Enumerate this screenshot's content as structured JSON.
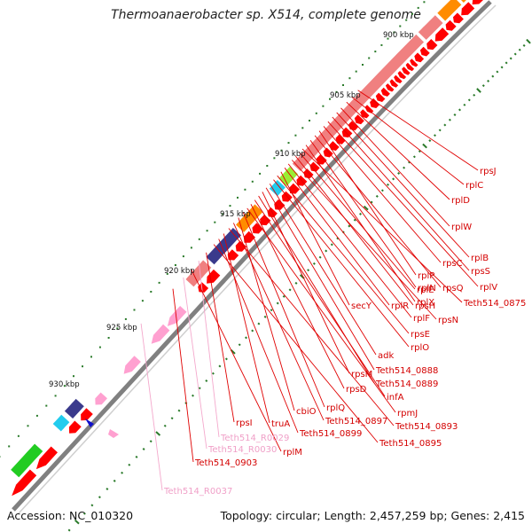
{
  "title": "Thermoanaerobacter sp. X514, complete genome",
  "footer": {
    "accession": "Accession: NC_010320",
    "summary": "Topology: circular; Length: 2,457,259 bp; Genes: 2,415"
  },
  "scale_labels": [
    "900 kbp",
    "905 kbp",
    "910 kbp",
    "915 kbp",
    "920 kbp",
    "925 kbp",
    "930 kbp"
  ],
  "gene_labels": [
    {
      "text": "rpsJ",
      "color": "#d40000"
    },
    {
      "text": "rplC",
      "color": "#d40000"
    },
    {
      "text": "rplD",
      "color": "#d40000"
    },
    {
      "text": "rplW",
      "color": "#d40000"
    },
    {
      "text": "rplB",
      "color": "#d40000"
    },
    {
      "text": "rpsS",
      "color": "#d40000"
    },
    {
      "text": "rplV",
      "color": "#d40000"
    },
    {
      "text": "rpsC",
      "color": "#d40000"
    },
    {
      "text": "rplP",
      "color": "#d40000"
    },
    {
      "text": "rpsQ",
      "color": "#d40000"
    },
    {
      "text": "rplN",
      "color": "#d40000"
    },
    {
      "text": "rplX",
      "color": "#d40000"
    },
    {
      "text": "Teth514_0875",
      "color": "#d40000"
    },
    {
      "text": "rplE",
      "color": "#d40000"
    },
    {
      "text": "rpsH",
      "color": "#d40000"
    },
    {
      "text": "rpsN",
      "color": "#d40000"
    },
    {
      "text": "rplF",
      "color": "#d40000"
    },
    {
      "text": "rplR",
      "color": "#d40000"
    },
    {
      "text": "secY",
      "color": "#d40000"
    },
    {
      "text": "rpsE",
      "color": "#d40000"
    },
    {
      "text": "rplO",
      "color": "#d40000"
    },
    {
      "text": "adk",
      "color": "#d40000"
    },
    {
      "text": "Teth514_0888",
      "color": "#d40000"
    },
    {
      "text": "rpsM",
      "color": "#d40000"
    },
    {
      "text": "Teth514_0889",
      "color": "#d40000"
    },
    {
      "text": "infA",
      "color": "#d40000"
    },
    {
      "text": "rpsD",
      "color": "#d40000"
    },
    {
      "text": "rpmJ",
      "color": "#d40000"
    },
    {
      "text": "rplQ",
      "color": "#d40000"
    },
    {
      "text": "cbiO",
      "color": "#d40000"
    },
    {
      "text": "Teth514_0897",
      "color": "#d40000"
    },
    {
      "text": "Teth514_0893",
      "color": "#d40000"
    },
    {
      "text": "truA",
      "color": "#d40000"
    },
    {
      "text": "Teth514_0899",
      "color": "#d40000"
    },
    {
      "text": "Teth514_0895",
      "color": "#d40000"
    },
    {
      "text": "rpsI",
      "color": "#d40000"
    },
    {
      "text": "Teth514_R0029",
      "color": "#f0a0c8"
    },
    {
      "text": "rplM",
      "color": "#d40000"
    },
    {
      "text": "Teth514_R0030",
      "color": "#f0a0c8"
    },
    {
      "text": "Teth514_0903",
      "color": "#d40000"
    },
    {
      "text": "Teth514_R0037",
      "color": "#f0a0c8"
    }
  ],
  "colors": {
    "cds": "#ff0000",
    "rna": "#ffa0d0",
    "backbone": "#777777",
    "orange": "#ff8c00",
    "salmon": "#f08080",
    "navy": "#3a3a8c",
    "green": "#22cc22",
    "lime": "#99ee33",
    "cyan": "#22ccee",
    "tick": "#2a7a2a"
  }
}
